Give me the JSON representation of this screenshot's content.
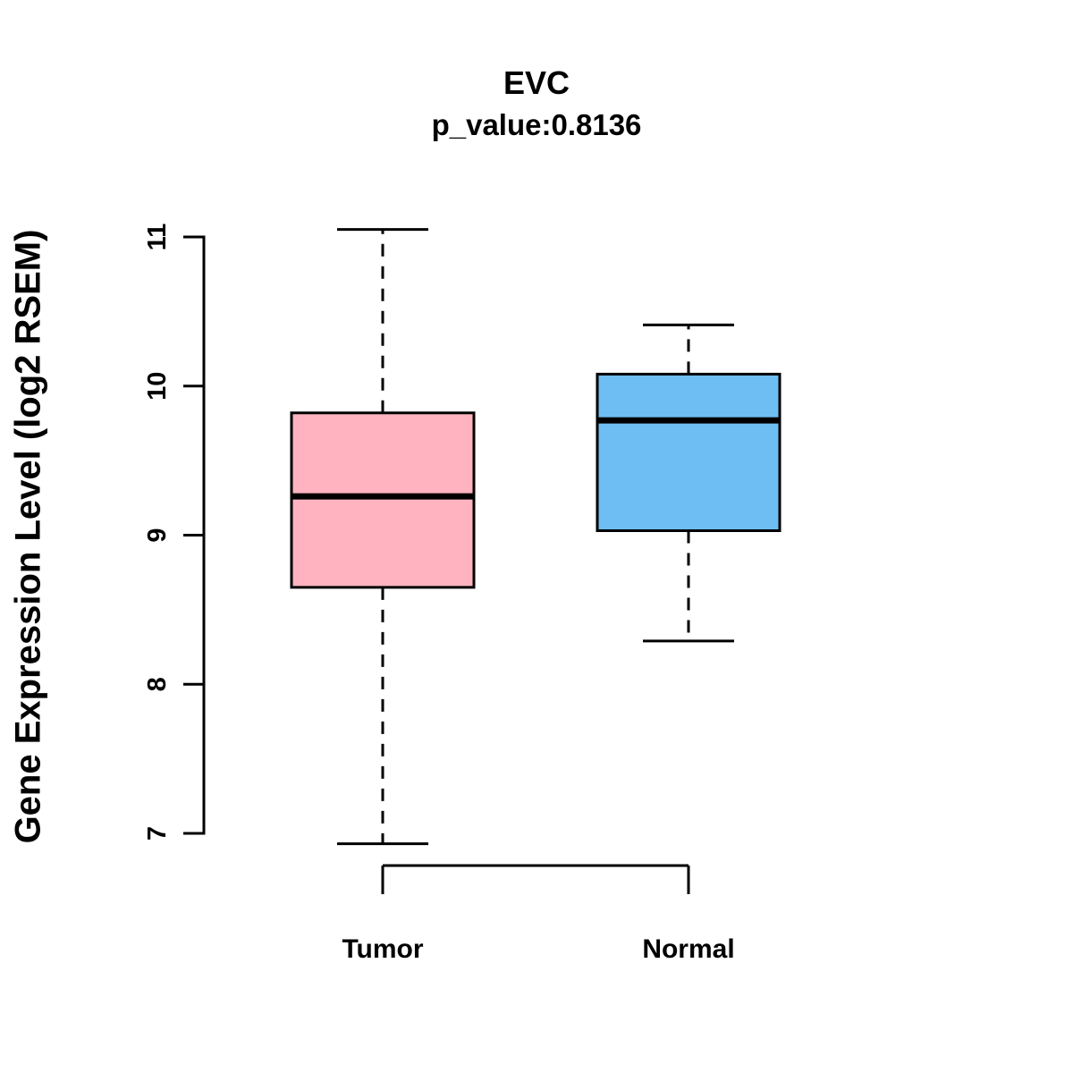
{
  "chart_data": {
    "type": "boxplot",
    "title": "EVC",
    "subtitle": "p_value:0.8136",
    "ylabel": "Gene Expression Level (log2 RSEM)",
    "yticks": [
      7,
      8,
      9,
      10,
      11
    ],
    "ylim": [
      6.6,
      11.2
    ],
    "grid": false,
    "legend": "none",
    "groups": [
      {
        "name": "Tumor",
        "color": "#FFB3C1",
        "whisker_low": 6.93,
        "q1": 8.65,
        "median": 9.26,
        "q3": 9.82,
        "whisker_high": 11.05
      },
      {
        "name": "Normal",
        "color": "#6FBEF3",
        "whisker_low": 8.29,
        "q1": 9.03,
        "median": 9.77,
        "q3": 10.08,
        "whisker_high": 10.41
      }
    ]
  }
}
